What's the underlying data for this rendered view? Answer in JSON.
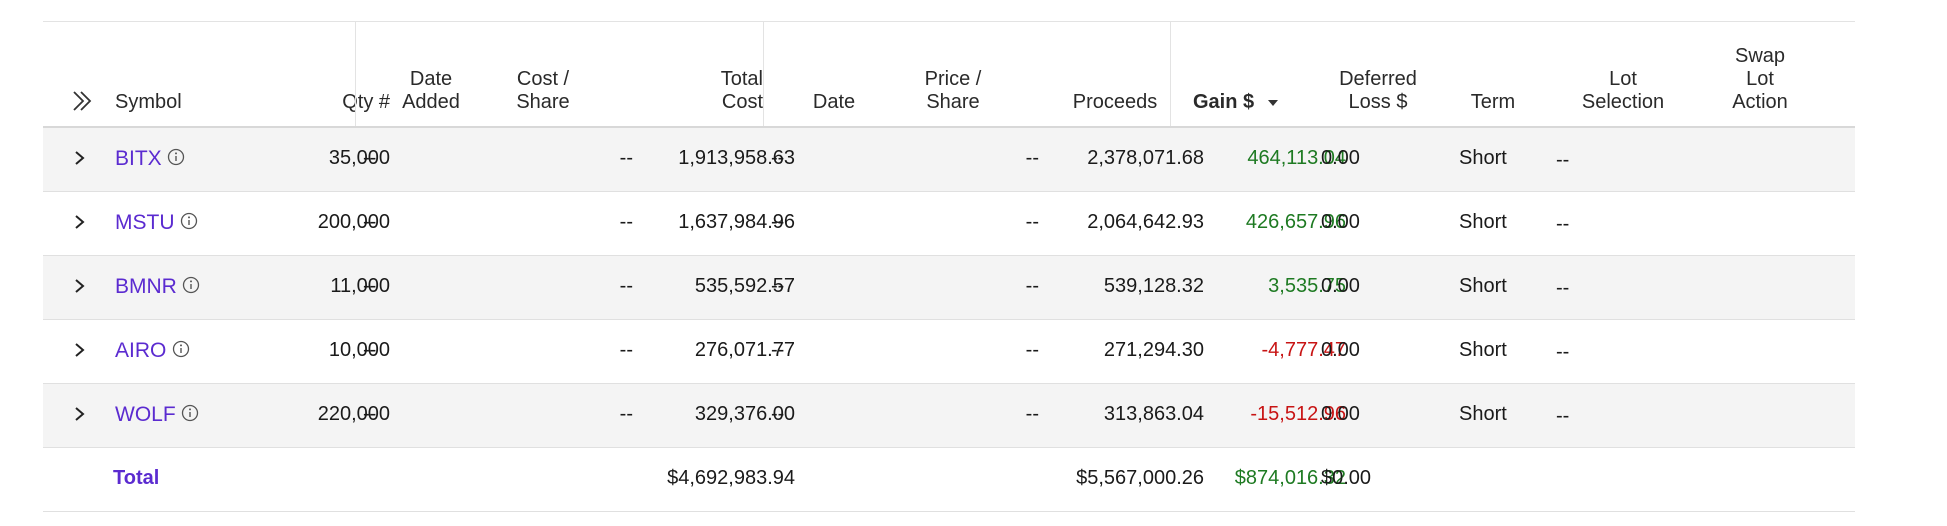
{
  "headers": {
    "symbol": "Symbol",
    "qty": "Qty #",
    "date_added_1": "Date",
    "date_added_2": "Added",
    "cost_share_1": "Cost /",
    "cost_share_2": "Share",
    "total_cost_1": "Total",
    "total_cost_2": "Cost",
    "date": "Date",
    "price_share_1": "Price /",
    "price_share_2": "Share",
    "proceeds": "Proceeds",
    "gain": "Gain $",
    "deferred_1": "Deferred",
    "deferred_2": "Loss $",
    "term": "Term",
    "lot_selection_1": "Lot",
    "lot_selection_2": "Selection",
    "swap_1": "Swap",
    "swap_2": "Lot",
    "swap_3": "Action"
  },
  "rows": [
    {
      "symbol": "BITX",
      "qty": "35,000",
      "date_added": "--",
      "cost_share": "--",
      "total_cost": "1,913,958.63",
      "date": "--",
      "price_share": "--",
      "proceeds": "2,378,071.68",
      "gain": "464,113.04",
      "deferred": "0.00",
      "term": "Short",
      "lot_selection": "--"
    },
    {
      "symbol": "MSTU",
      "qty": "200,000",
      "date_added": "--",
      "cost_share": "--",
      "total_cost": "1,637,984.96",
      "date": "--",
      "price_share": "--",
      "proceeds": "2,064,642.93",
      "gain": "426,657.96",
      "deferred": "0.00",
      "term": "Short",
      "lot_selection": "--"
    },
    {
      "symbol": "BMNR",
      "qty": "11,000",
      "date_added": "--",
      "cost_share": "--",
      "total_cost": "535,592.57",
      "date": "--",
      "price_share": "--",
      "proceeds": "539,128.32",
      "gain": "3,535.75",
      "deferred": "0.00",
      "term": "Short",
      "lot_selection": "--"
    },
    {
      "symbol": "AIRO",
      "qty": "10,000",
      "date_added": "--",
      "cost_share": "--",
      "total_cost": "276,071.77",
      "date": "--",
      "price_share": "--",
      "proceeds": "271,294.30",
      "gain": "-4,777.47",
      "deferred": "0.00",
      "term": "Short",
      "lot_selection": "--"
    },
    {
      "symbol": "WOLF",
      "qty": "220,000",
      "date_added": "--",
      "cost_share": "--",
      "total_cost": "329,376.00",
      "date": "--",
      "price_share": "--",
      "proceeds": "313,863.04",
      "gain": "-15,512.96",
      "deferred": "0.00",
      "term": "Short",
      "lot_selection": "--"
    }
  ],
  "total": {
    "label": "Total",
    "total_cost": "$4,692,983.94",
    "proceeds": "$5,567,000.26",
    "gain": "$874,016.32",
    "deferred": "$0.00"
  },
  "colors": {
    "symbol": "#5b2bd0",
    "gain_positive": "#1e7a22",
    "gain_negative": "#c81414"
  },
  "icons": {
    "expand_all": "double-chevron-right-icon",
    "expand_row": "chevron-right-icon",
    "info": "info-circle-icon",
    "sort": "caret-down-icon"
  }
}
